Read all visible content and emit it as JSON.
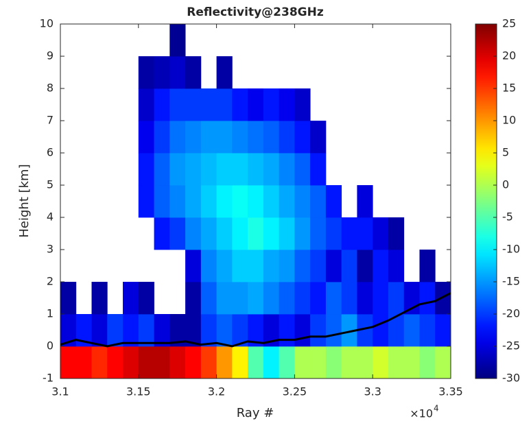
{
  "chart_data": {
    "type": "heatmap",
    "title": "Reflectivity@238GHz",
    "x_label": "Ray #",
    "y_label": "Height [km]",
    "x_multiplier": "×10",
    "x_multiplier_exp": "4",
    "xlim": [
      3.1,
      3.35
    ],
    "xticks": [
      {
        "value": 3.1,
        "label": "3.1"
      },
      3.15,
      3.2,
      3.25,
      3.3,
      3.35
    ],
    "ylim": [
      -1,
      10
    ],
    "yticks": [
      -1,
      0,
      1,
      2,
      3,
      4,
      5,
      6,
      7,
      8,
      9,
      10
    ],
    "colormap": "jet",
    "clim": [
      -30,
      25
    ],
    "cticks": [
      -30,
      -25,
      -20,
      -15,
      -10,
      -5,
      0,
      5,
      10,
      15,
      20,
      25
    ],
    "x": [
      3.105,
      3.115,
      3.125,
      3.135,
      3.145,
      3.155,
      3.165,
      3.175,
      3.185,
      3.195,
      3.205,
      3.215,
      3.225,
      3.235,
      3.245,
      3.255,
      3.265,
      3.275,
      3.285,
      3.295,
      3.305,
      3.315,
      3.325,
      3.335,
      3.345
    ],
    "y": [
      -0.5,
      0.5,
      1.5,
      2.5,
      3.5,
      4.5,
      5.5,
      6.5,
      7.5,
      8.5,
      9.5
    ],
    "z": [
      [
        18,
        18,
        16,
        18,
        20,
        22,
        22,
        20,
        18,
        15,
        10,
        5,
        -5,
        -10,
        -5,
        0,
        0,
        -2,
        0,
        0,
        2,
        0,
        0,
        -2,
        0
      ],
      [
        -25,
        -22,
        -25,
        -20,
        -22,
        -20,
        -25,
        -28,
        -28,
        -20,
        -18,
        -20,
        -22,
        -25,
        -22,
        -25,
        -20,
        -18,
        -15,
        -20,
        -22,
        -20,
        -18,
        -20,
        -22
      ],
      [
        -28,
        null,
        -28,
        null,
        -25,
        -28,
        null,
        null,
        -28,
        -18,
        -15,
        -15,
        -14,
        -16,
        -18,
        -20,
        -22,
        -18,
        -20,
        -25,
        -22,
        -20,
        -25,
        -22,
        -28
      ],
      [
        null,
        null,
        null,
        null,
        null,
        null,
        null,
        null,
        -25,
        -16,
        -14,
        -12,
        -12,
        -14,
        -15,
        -18,
        -20,
        -25,
        -20,
        -28,
        -22,
        -25,
        null,
        -28,
        null
      ],
      [
        null,
        null,
        null,
        null,
        null,
        null,
        -22,
        -20,
        -16,
        -14,
        -12,
        -10,
        -8,
        -10,
        -12,
        -15,
        -18,
        -20,
        -22,
        -22,
        -25,
        -28,
        null,
        null,
        null
      ],
      [
        null,
        null,
        null,
        null,
        null,
        -22,
        -18,
        -16,
        -14,
        -12,
        -10,
        -9,
        -10,
        -12,
        -14,
        -16,
        -18,
        -22,
        null,
        -25,
        null,
        null,
        null,
        null,
        null
      ],
      [
        null,
        null,
        null,
        null,
        null,
        -22,
        -18,
        -15,
        -14,
        -13,
        -12,
        -12,
        -13,
        -14,
        -16,
        -18,
        -22,
        null,
        null,
        null,
        null,
        null,
        null,
        null,
        null
      ],
      [
        null,
        null,
        null,
        null,
        null,
        -24,
        -20,
        -17,
        -16,
        -15,
        -15,
        -16,
        -17,
        -18,
        -20,
        -22,
        -26,
        null,
        null,
        null,
        null,
        null,
        null,
        null,
        null
      ],
      [
        null,
        null,
        null,
        null,
        null,
        -26,
        -22,
        -20,
        -20,
        -20,
        -20,
        -22,
        -24,
        -22,
        -24,
        -26,
        null,
        null,
        null,
        null,
        null,
        null,
        null,
        null,
        null
      ],
      [
        null,
        null,
        null,
        null,
        null,
        -28,
        -27,
        -26,
        -28,
        null,
        -28,
        null,
        null,
        null,
        null,
        null,
        null,
        null,
        null,
        null,
        null,
        null,
        null,
        null,
        null
      ],
      [
        null,
        null,
        null,
        null,
        null,
        null,
        null,
        -29,
        null,
        null,
        null,
        null,
        null,
        null,
        null,
        null,
        null,
        null,
        null,
        null,
        null,
        null,
        null,
        null,
        null
      ]
    ],
    "line": {
      "color": "#000000",
      "x": [
        3.1,
        3.11,
        3.12,
        3.13,
        3.14,
        3.15,
        3.16,
        3.17,
        3.18,
        3.19,
        3.2,
        3.21,
        3.22,
        3.23,
        3.24,
        3.25,
        3.26,
        3.27,
        3.28,
        3.29,
        3.3,
        3.31,
        3.32,
        3.33,
        3.34,
        3.35
      ],
      "y": [
        0.05,
        0.2,
        0.1,
        0.0,
        0.1,
        0.1,
        0.1,
        0.1,
        0.15,
        0.05,
        0.1,
        0.0,
        0.15,
        0.1,
        0.2,
        0.2,
        0.3,
        0.3,
        0.4,
        0.5,
        0.6,
        0.8,
        1.05,
        1.3,
        1.4,
        1.65
      ]
    }
  }
}
